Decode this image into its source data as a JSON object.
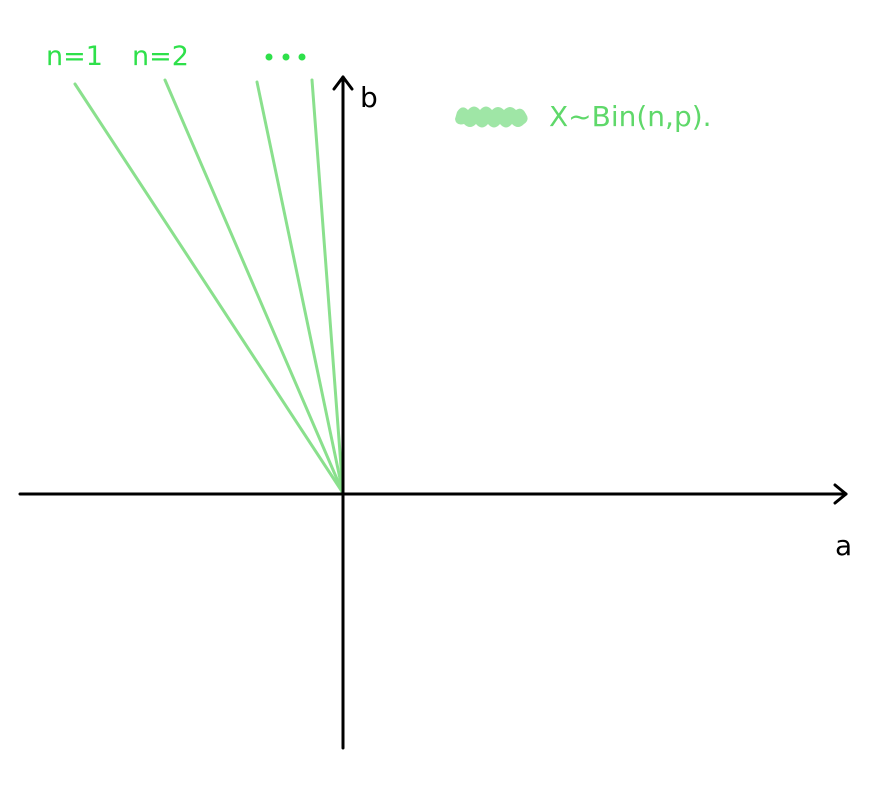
{
  "axes": {
    "x_label": "a",
    "y_label": "b"
  },
  "rays": {
    "labels": [
      "n=1",
      "n=2"
    ],
    "ellipsis": "•••",
    "line_color": "#8ae08d",
    "label_color": "#2ee04a"
  },
  "legend": {
    "text": "X~Bin(n,p).",
    "swatch_color": "#9fe6a6",
    "text_color": "#5fd86a"
  }
}
